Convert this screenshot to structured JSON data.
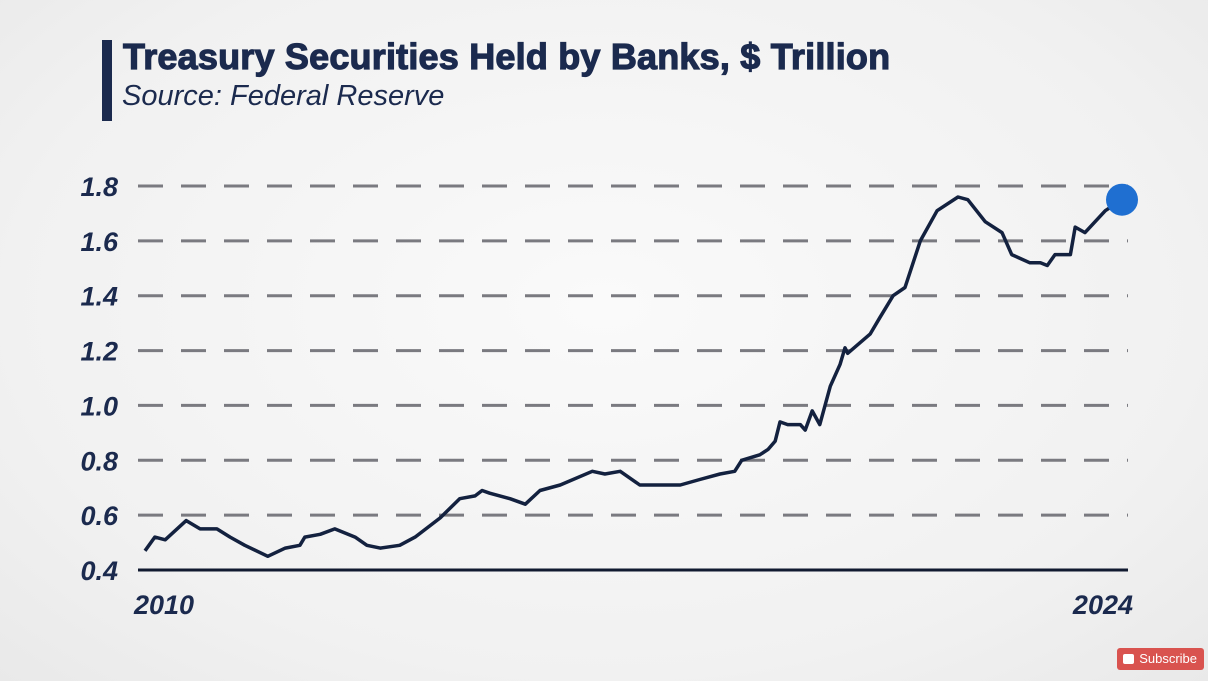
{
  "header": {
    "title": "Treasury Securities Held by Banks, $ Trillion",
    "source": "Source: Federal Reserve"
  },
  "subscribe_label": "Subscribe",
  "colors": {
    "line": "#13213f",
    "accent_dot": "#1f6fd1",
    "text": "#1b2a4e",
    "grid": "#7a7a80"
  },
  "chart_data": {
    "type": "line",
    "title": "Treasury Securities Held by Banks, $ Trillion",
    "subtitle": "Source: Federal Reserve",
    "xlabel": "",
    "ylabel": "",
    "xlim": [
      2010,
      2024
    ],
    "ylim": [
      0.4,
      1.8
    ],
    "grid": true,
    "yticks": [
      "0.4",
      "0.6",
      "0.8",
      "1.0",
      "1.2",
      "1.4",
      "1.6",
      "1.8"
    ],
    "ytick_values": [
      0.4,
      0.6,
      0.8,
      1.0,
      1.2,
      1.4,
      1.6,
      1.8
    ],
    "xticks": [
      "2010",
      "2024"
    ],
    "xtick_values": [
      2010,
      2024
    ],
    "series": [
      {
        "name": "Treasury Securities Held by Banks",
        "x": [
          2010.0,
          2010.14,
          2010.29,
          2010.59,
          2010.79,
          2011.03,
          2011.22,
          2011.43,
          2011.76,
          2012.01,
          2012.22,
          2012.29,
          2012.51,
          2012.72,
          2013.01,
          2013.18,
          2013.37,
          2013.65,
          2013.87,
          2014.23,
          2014.51,
          2014.73,
          2014.83,
          2014.94,
          2015.23,
          2015.45,
          2015.66,
          2015.95,
          2016.41,
          2016.59,
          2016.81,
          2017.09,
          2017.67,
          2017.95,
          2018.24,
          2018.45,
          2018.55,
          2018.81,
          2018.93,
          2019.03,
          2019.1,
          2019.21,
          2019.39,
          2019.46,
          2019.56,
          2019.67,
          2019.82,
          2019.96,
          2020.03,
          2020.07,
          2020.39,
          2020.53,
          2020.72,
          2020.89,
          2021.11,
          2021.35,
          2021.65,
          2021.79,
          2022.04,
          2022.28,
          2022.42,
          2022.68,
          2022.83,
          2022.93,
          2023.04,
          2023.26,
          2023.33,
          2023.47,
          2023.76,
          2024.0
        ],
        "values": [
          0.47,
          0.52,
          0.51,
          0.58,
          0.55,
          0.55,
          0.52,
          0.49,
          0.45,
          0.48,
          0.49,
          0.52,
          0.53,
          0.55,
          0.52,
          0.49,
          0.48,
          0.49,
          0.52,
          0.59,
          0.66,
          0.67,
          0.69,
          0.68,
          0.66,
          0.64,
          0.69,
          0.71,
          0.76,
          0.75,
          0.76,
          0.71,
          0.71,
          0.73,
          0.75,
          0.76,
          0.8,
          0.82,
          0.84,
          0.87,
          0.94,
          0.93,
          0.93,
          0.91,
          0.98,
          0.93,
          1.07,
          1.15,
          1.21,
          1.19,
          1.26,
          1.32,
          1.4,
          1.43,
          1.6,
          1.71,
          1.76,
          1.75,
          1.67,
          1.63,
          1.55,
          1.52,
          1.52,
          1.51,
          1.55,
          1.55,
          1.65,
          1.63,
          1.71,
          1.75
        ]
      }
    ],
    "annotations": [
      "latest value marker (blue dot) at end of series"
    ]
  }
}
